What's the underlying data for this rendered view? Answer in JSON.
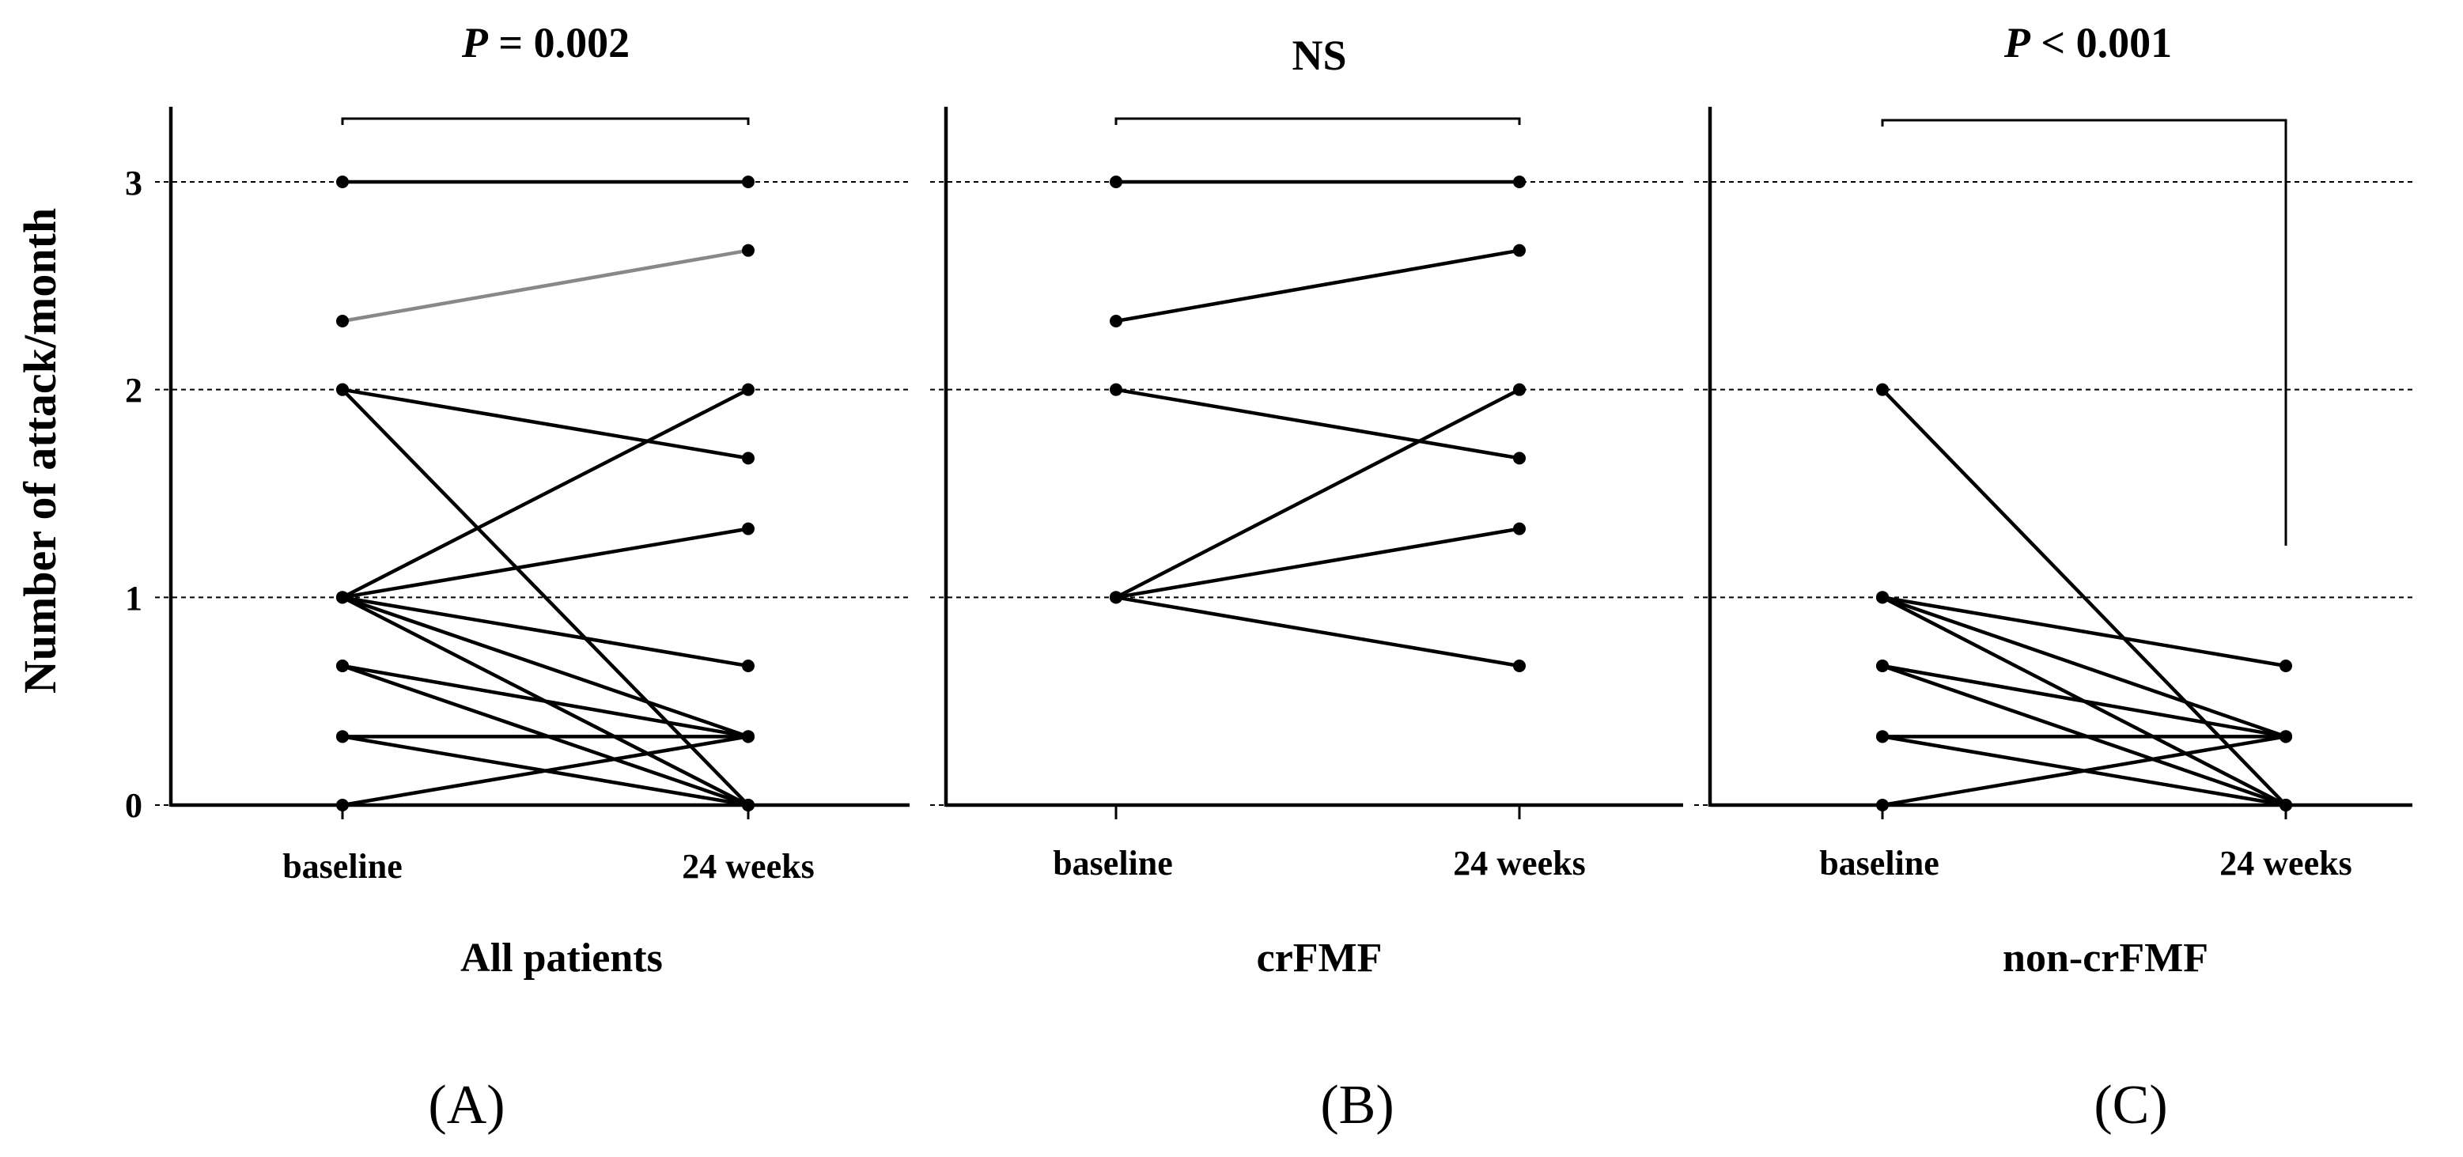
{
  "figure": {
    "y_axis_label": "Number of attack/month",
    "colors": {
      "line": "#000000",
      "highlight_line": "#888888"
    }
  },
  "chart_data": [
    {
      "type": "line",
      "id": "A",
      "panel_label": "(A)",
      "group_label": "All patients",
      "significance": {
        "prefix": "P",
        "rest": " = 0.002"
      },
      "categories": [
        "baseline",
        "24 weeks"
      ],
      "ylabel": "Number of attack/month",
      "yticks": [
        0,
        1,
        2,
        3
      ],
      "ylim": [
        0,
        3.4
      ],
      "grid": true,
      "series": [
        {
          "name": "patient 1",
          "values": [
            3,
            3
          ]
        },
        {
          "name": "patient 2",
          "values": [
            2.33,
            2.67
          ],
          "color": "#888888"
        },
        {
          "name": "patient 3",
          "values": [
            2,
            1.67
          ]
        },
        {
          "name": "patient 4",
          "values": [
            2,
            0
          ]
        },
        {
          "name": "patient 5",
          "values": [
            1,
            2
          ]
        },
        {
          "name": "patient 6",
          "values": [
            1,
            1.33
          ]
        },
        {
          "name": "patient 7",
          "values": [
            1,
            0.67
          ]
        },
        {
          "name": "patient 8",
          "values": [
            1,
            0.33
          ]
        },
        {
          "name": "patient 9",
          "values": [
            1,
            0
          ]
        },
        {
          "name": "patient 10",
          "values": [
            0.67,
            0.33
          ]
        },
        {
          "name": "patient 11",
          "values": [
            0.67,
            0
          ]
        },
        {
          "name": "patient 12",
          "values": [
            0.33,
            0.33
          ]
        },
        {
          "name": "patient 13",
          "values": [
            0.33,
            0
          ]
        },
        {
          "name": "patient 14",
          "values": [
            0,
            0.33
          ]
        }
      ]
    },
    {
      "type": "line",
      "id": "B",
      "panel_label": "(B)",
      "group_label": "crFMF",
      "significance": {
        "prefix": "",
        "rest": "NS"
      },
      "categories": [
        "baseline",
        "24 weeks"
      ],
      "ylim": [
        0,
        3.4
      ],
      "grid": true,
      "series": [
        {
          "name": "patient 1",
          "values": [
            3,
            3
          ]
        },
        {
          "name": "patient 2",
          "values": [
            2.33,
            2.67
          ]
        },
        {
          "name": "patient 3",
          "values": [
            2,
            1.67
          ]
        },
        {
          "name": "patient 4",
          "values": [
            1,
            2
          ]
        },
        {
          "name": "patient 5",
          "values": [
            1,
            1.33
          ]
        },
        {
          "name": "patient 6",
          "values": [
            1,
            0.67
          ]
        }
      ]
    },
    {
      "type": "line",
      "id": "C",
      "panel_label": "(C)",
      "group_label": "non-crFMF",
      "significance": {
        "prefix": "P",
        "rest": " < 0.001"
      },
      "categories": [
        "baseline",
        "24 weeks"
      ],
      "ylim": [
        0,
        3.4
      ],
      "grid": true,
      "series": [
        {
          "name": "patient 1",
          "values": [
            2,
            0
          ]
        },
        {
          "name": "patient 2",
          "values": [
            1,
            0.67
          ]
        },
        {
          "name": "patient 3",
          "values": [
            1,
            0.33
          ]
        },
        {
          "name": "patient 4",
          "values": [
            1,
            0
          ]
        },
        {
          "name": "patient 5",
          "values": [
            0.67,
            0.33
          ]
        },
        {
          "name": "patient 6",
          "values": [
            0.67,
            0
          ]
        },
        {
          "name": "patient 7",
          "values": [
            0.33,
            0.33
          ]
        },
        {
          "name": "patient 8",
          "values": [
            0.33,
            0
          ]
        },
        {
          "name": "patient 9",
          "values": [
            0,
            0.33
          ]
        }
      ]
    }
  ]
}
